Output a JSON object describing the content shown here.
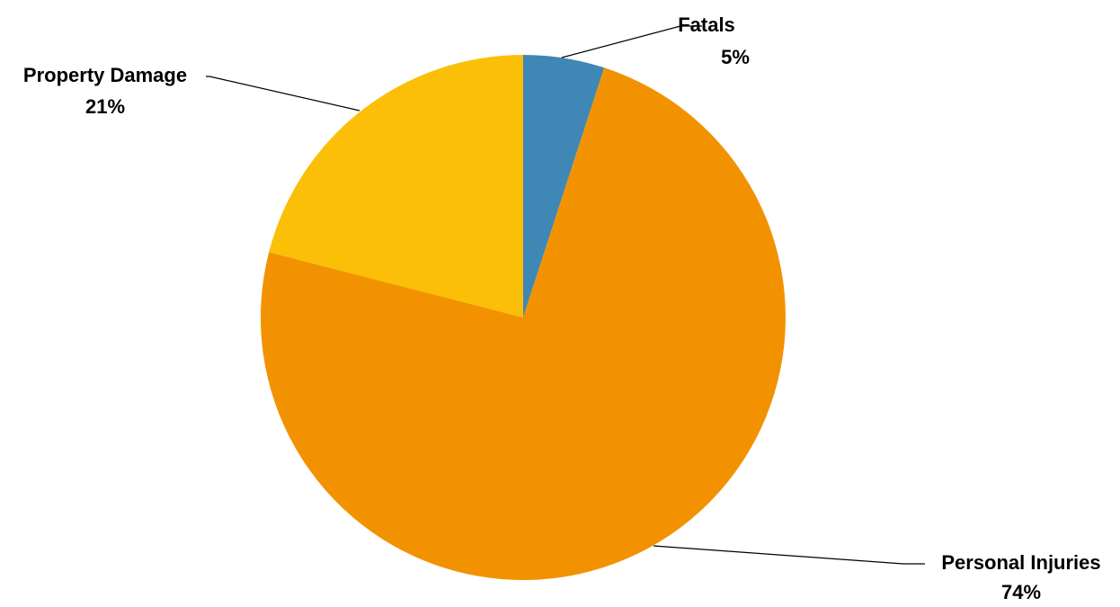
{
  "chart_data": {
    "type": "pie",
    "title": "",
    "slices": [
      {
        "name": "Fatals",
        "value": 5,
        "label": "5%",
        "color": "#3f88b5"
      },
      {
        "name": "Personal Injuries",
        "value": 74,
        "label": "74%",
        "color": "#f39200"
      },
      {
        "name": "Property Damage",
        "value": 21,
        "label": "21%",
        "color": "#fbbf07"
      }
    ],
    "start_angle": "12 o'clock",
    "direction": "clockwise",
    "legend": "none",
    "label_style": "category name and percentage with leader lines"
  }
}
